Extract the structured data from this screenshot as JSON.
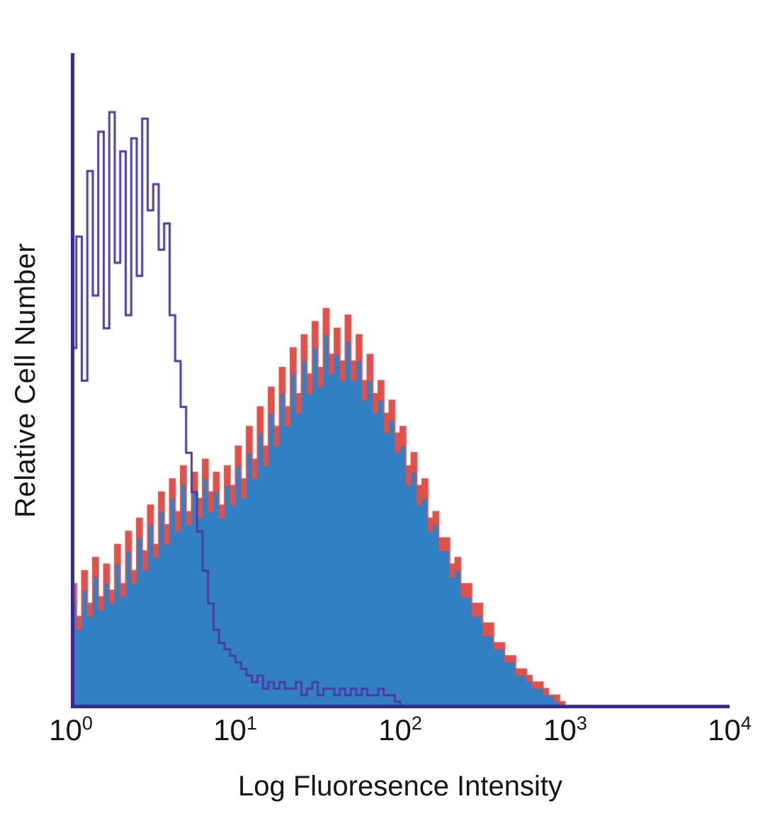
{
  "figure": {
    "background": "#ffffff",
    "text_color": "#161616"
  },
  "axes": {
    "x_ticks": [
      {
        "base": "10",
        "exp": "0"
      },
      {
        "base": "10",
        "exp": "1"
      },
      {
        "base": "10",
        "exp": "2"
      },
      {
        "base": "10",
        "exp": "3"
      },
      {
        "base": "10",
        "exp": "4"
      }
    ]
  },
  "chart_data": {
    "type": "area",
    "subtype": "flow-cytometry-overlay-histogram",
    "title": "",
    "xlabel": "Log Fluoresence Intensity",
    "ylabel": "Relative Cell Number",
    "x_scale": "log10",
    "x_decade_range": [
      0,
      4
    ],
    "x_tick_labels": [
      "10^0",
      "10^1",
      "10^2",
      "10^3",
      "10^4"
    ],
    "ylim": [
      0,
      100
    ],
    "y_units": "relative (unlabeled axis, 0-100 of plot height)",
    "grid": false,
    "legend": "none",
    "axis_color": "#38288f",
    "background": "#ffffff",
    "bins_per_decade": 30,
    "series": [
      {
        "name": "stained-sample-outline-red",
        "style": "filled",
        "outline": true,
        "color": "#e2504a",
        "line_width": 2,
        "values": [
          19,
          14,
          21,
          16,
          23,
          17,
          22,
          18,
          25,
          19,
          27,
          21,
          29,
          24,
          31,
          25,
          33,
          28,
          35,
          30,
          37,
          30,
          36,
          32,
          38,
          33,
          36,
          31,
          37,
          34,
          40,
          35,
          43,
          38,
          46,
          40,
          49,
          43,
          52,
          46,
          55,
          48,
          57,
          51,
          59,
          52,
          61,
          54,
          58,
          53,
          60,
          53,
          57,
          50,
          54,
          48,
          50,
          45,
          47,
          42,
          43,
          37,
          39,
          34,
          35,
          29,
          30,
          26,
          26,
          22,
          23,
          19,
          19,
          16,
          16,
          13,
          13,
          10,
          10,
          8,
          8,
          6,
          6,
          5,
          4,
          4,
          3,
          2,
          2,
          1,
          0,
          0,
          0,
          0,
          0,
          0,
          0,
          0,
          0,
          0,
          0,
          0,
          0,
          0,
          0,
          0,
          0,
          0,
          0,
          0,
          0,
          0,
          0,
          0,
          0,
          0,
          0,
          0,
          0,
          0
        ]
      },
      {
        "name": "stained-sample-filled-blue",
        "style": "filled",
        "outline": false,
        "color": "#3180c3",
        "line_width": 0,
        "values": [
          16,
          12,
          18,
          14,
          20,
          15,
          19,
          16,
          22,
          17,
          24,
          19,
          26,
          21,
          28,
          23,
          30,
          25,
          32,
          27,
          34,
          28,
          33,
          29,
          35,
          30,
          33,
          29,
          34,
          31,
          37,
          32,
          39,
          35,
          42,
          37,
          45,
          40,
          48,
          43,
          51,
          45,
          53,
          48,
          55,
          49,
          57,
          51,
          54,
          50,
          56,
          50,
          53,
          47,
          50,
          45,
          47,
          42,
          44,
          39,
          40,
          34,
          36,
          31,
          32,
          27,
          28,
          24,
          24,
          20,
          21,
          17,
          17,
          14,
          14,
          11,
          11,
          9,
          9,
          7,
          7,
          5,
          5,
          4,
          3,
          3,
          2,
          2,
          1,
          0,
          0,
          0,
          0,
          0,
          0,
          0,
          0,
          0,
          0,
          0,
          0,
          0,
          0,
          0,
          0,
          0,
          0,
          0,
          0,
          0,
          0,
          0,
          0,
          0,
          0,
          0,
          0,
          0,
          0,
          0
        ]
      },
      {
        "name": "negative-control-open-purple",
        "style": "open-line",
        "outline": true,
        "color": "#4b3ba6",
        "line_width": 3,
        "values": [
          55,
          72,
          50,
          82,
          63,
          88,
          58,
          91,
          68,
          85,
          60,
          87,
          66,
          90,
          76,
          80,
          70,
          74,
          60,
          53,
          46,
          39,
          33,
          27,
          21,
          16,
          12,
          10,
          9,
          8,
          7,
          6,
          5,
          4,
          5,
          3,
          4,
          3,
          4,
          3,
          3,
          4,
          2,
          3,
          4,
          2,
          3,
          3,
          2,
          3,
          2,
          3,
          2,
          3,
          2,
          2,
          3,
          2,
          2,
          1,
          0,
          0,
          0,
          0,
          0,
          0,
          0,
          0,
          0,
          0,
          0,
          0,
          0,
          0,
          0,
          0,
          0,
          0,
          0,
          0,
          0,
          0,
          0,
          0,
          0,
          0,
          0,
          0,
          0,
          0,
          0,
          0,
          0,
          0,
          0,
          0,
          0,
          0,
          0,
          0,
          0,
          0,
          0,
          0,
          0,
          0,
          0,
          0,
          0,
          0,
          0,
          0,
          0,
          0,
          0,
          0,
          0,
          0,
          0,
          0
        ]
      }
    ]
  }
}
